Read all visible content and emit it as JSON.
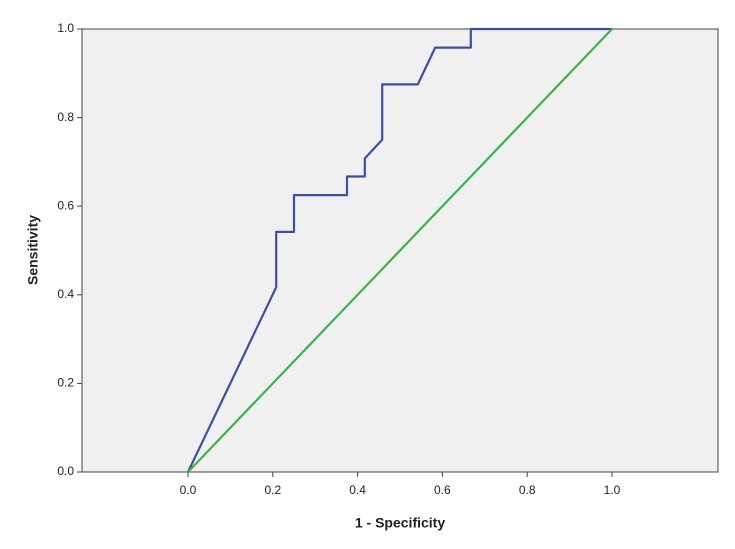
{
  "chart_data": {
    "type": "line",
    "xlabel": "1 - Specificity",
    "ylabel": "Sensitivity",
    "xlim": [
      -0.25,
      1.25
    ],
    "ylim": [
      0,
      1
    ],
    "xticks": [
      {
        "value": 0,
        "label": "0.0"
      },
      0.2,
      0.4,
      0.6,
      0.8,
      {
        "value": 1,
        "label": "1.0"
      }
    ],
    "yticks": [
      {
        "value": 0,
        "label": "0.0"
      },
      0.2,
      0.4,
      0.6,
      0.8,
      {
        "value": 1,
        "label": "1.0"
      }
    ],
    "grid": false,
    "series": [
      {
        "color": "#3d4fa1",
        "x": [
          0,
          0.208,
          0.208,
          0.25,
          0.25,
          0.375,
          0.375,
          0.417,
          0.417,
          0.458,
          0.458,
          0.542,
          0.583,
          0.667,
          0.667,
          1
        ],
        "values": [
          0,
          0.417,
          0.542,
          0.542,
          0.625,
          0.625,
          0.667,
          0.667,
          0.708,
          0.75,
          0.875,
          0.875,
          0.958,
          0.958,
          1,
          1
        ]
      },
      {
        "color": "#3cb44a",
        "x": [
          0,
          1
        ],
        "values": [
          0,
          1
        ]
      }
    ]
  }
}
